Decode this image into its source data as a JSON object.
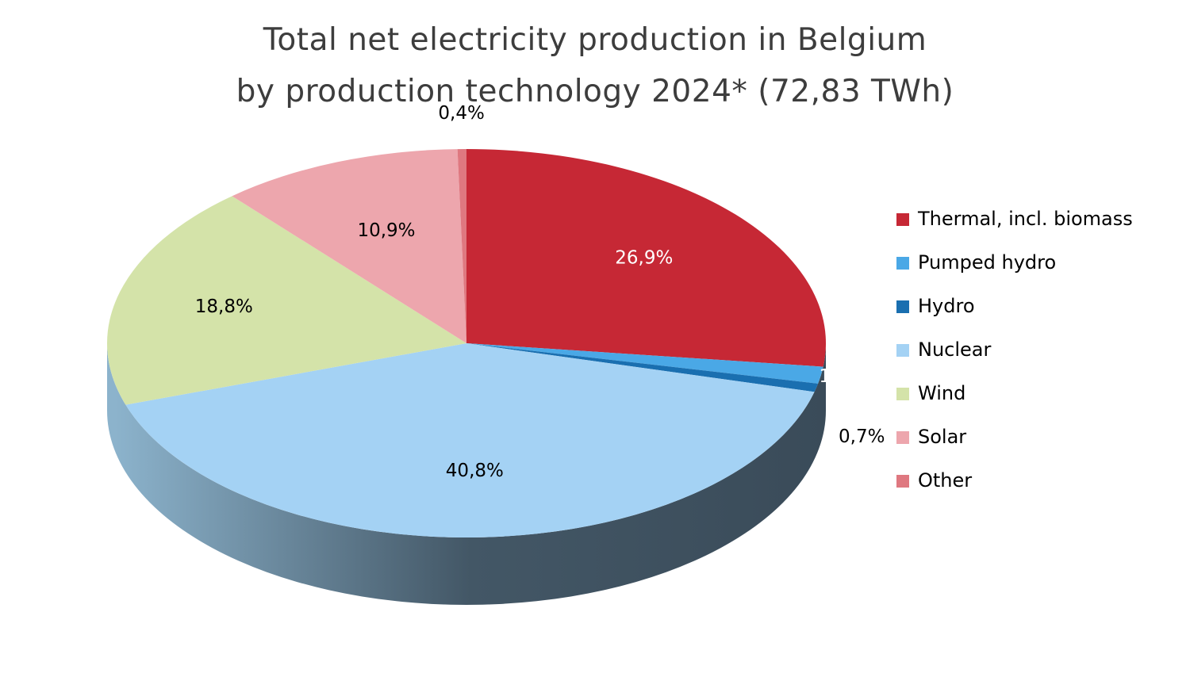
{
  "chart_data": {
    "type": "pie",
    "title_line1": "Total net electricity production in Belgium",
    "title_line2": "by production technology 2024* (72,83 TWh)",
    "legend_position": "right",
    "slices": [
      {
        "name": "Thermal, incl. biomass",
        "value": 26.9,
        "label": "26,9%",
        "color": "#c62835",
        "label_color": "#ffffff"
      },
      {
        "name": "Pumped hydro",
        "value": 1.4,
        "label": "1,4%",
        "color": "#4aa8e6",
        "label_color": "#ffffff"
      },
      {
        "name": "Hydro",
        "value": 0.7,
        "label": "0,7%",
        "color": "#1a6fb0",
        "label_color": "#000000"
      },
      {
        "name": "Nuclear",
        "value": 40.8,
        "label": "40,8%",
        "color": "#a4d2f4",
        "label_color": "#000000"
      },
      {
        "name": "Wind",
        "value": 18.8,
        "label": "18,8%",
        "color": "#d4e3a9",
        "label_color": "#000000"
      },
      {
        "name": "Solar",
        "value": 10.9,
        "label": "10,9%",
        "color": "#eda6ad",
        "label_color": "#000000"
      },
      {
        "name": "Other",
        "value": 0.4,
        "label": "0,4%",
        "color": "#df7880",
        "label_color": "#000000"
      }
    ]
  }
}
